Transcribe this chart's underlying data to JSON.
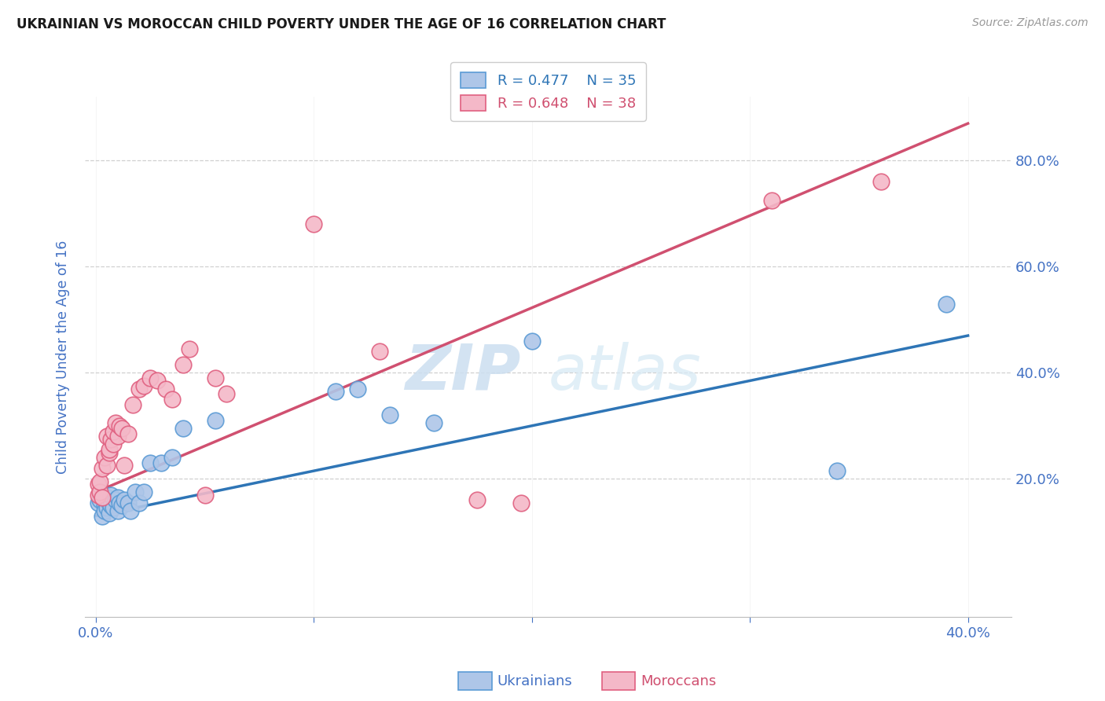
{
  "title": "UKRAINIAN VS MOROCCAN CHILD POVERTY UNDER THE AGE OF 16 CORRELATION CHART",
  "source": "Source: ZipAtlas.com",
  "ylabel": "Child Poverty Under the Age of 16",
  "xlim": [
    -0.005,
    0.42
  ],
  "ylim": [
    -0.06,
    0.92
  ],
  "xticks": [
    0.0,
    0.1,
    0.2,
    0.3,
    0.4
  ],
  "yticks": [
    0.2,
    0.4,
    0.6,
    0.8
  ],
  "xticklabels_show": [
    "0.0%",
    "40.0%"
  ],
  "xticklabels_show_pos": [
    0.0,
    0.4
  ],
  "yticklabels": [
    "20.0%",
    "40.0%",
    "60.0%",
    "80.0%"
  ],
  "blue_label": "Ukrainians",
  "pink_label": "Moroccans",
  "blue_R": "R = 0.477",
  "blue_N": "N = 35",
  "pink_R": "R = 0.648",
  "pink_N": "N = 38",
  "blue_color": "#aec6e8",
  "pink_color": "#f4b8c8",
  "blue_edge_color": "#5b9bd5",
  "pink_edge_color": "#e06080",
  "blue_line_color": "#2e75b6",
  "pink_line_color": "#d05070",
  "watermark_zip": "ZIP",
  "watermark_atlas": "atlas",
  "background_color": "#ffffff",
  "grid_color": "#d0d0d0",
  "tick_color": "#4472c4",
  "title_color": "#1a1a1a",
  "blue_points_x": [
    0.001,
    0.002,
    0.003,
    0.004,
    0.004,
    0.005,
    0.005,
    0.006,
    0.006,
    0.007,
    0.007,
    0.008,
    0.009,
    0.01,
    0.01,
    0.011,
    0.012,
    0.013,
    0.015,
    0.016,
    0.018,
    0.02,
    0.022,
    0.025,
    0.03,
    0.035,
    0.04,
    0.055,
    0.11,
    0.12,
    0.135,
    0.155,
    0.2,
    0.34,
    0.39
  ],
  "blue_points_y": [
    0.155,
    0.16,
    0.13,
    0.15,
    0.14,
    0.145,
    0.165,
    0.135,
    0.155,
    0.15,
    0.17,
    0.145,
    0.16,
    0.14,
    0.165,
    0.155,
    0.15,
    0.16,
    0.155,
    0.14,
    0.175,
    0.155,
    0.175,
    0.23,
    0.23,
    0.24,
    0.295,
    0.31,
    0.365,
    0.37,
    0.32,
    0.305,
    0.46,
    0.215,
    0.53
  ],
  "pink_points_x": [
    0.001,
    0.001,
    0.002,
    0.002,
    0.003,
    0.003,
    0.004,
    0.005,
    0.005,
    0.006,
    0.006,
    0.007,
    0.008,
    0.008,
    0.009,
    0.01,
    0.011,
    0.012,
    0.013,
    0.015,
    0.017,
    0.02,
    0.022,
    0.025,
    0.028,
    0.032,
    0.035,
    0.04,
    0.043,
    0.05,
    0.055,
    0.06,
    0.1,
    0.13,
    0.175,
    0.195,
    0.31,
    0.36
  ],
  "pink_points_y": [
    0.17,
    0.19,
    0.175,
    0.195,
    0.165,
    0.22,
    0.24,
    0.225,
    0.28,
    0.25,
    0.255,
    0.275,
    0.265,
    0.29,
    0.305,
    0.28,
    0.3,
    0.295,
    0.225,
    0.285,
    0.34,
    0.37,
    0.375,
    0.39,
    0.385,
    0.37,
    0.35,
    0.415,
    0.445,
    0.17,
    0.39,
    0.36,
    0.68,
    0.44,
    0.16,
    0.155,
    0.725,
    0.76
  ],
  "blue_trend_x": [
    0.0,
    0.4
  ],
  "blue_trend_y": [
    0.13,
    0.47
  ],
  "pink_trend_x": [
    0.0,
    0.4
  ],
  "pink_trend_y": [
    0.175,
    0.87
  ]
}
